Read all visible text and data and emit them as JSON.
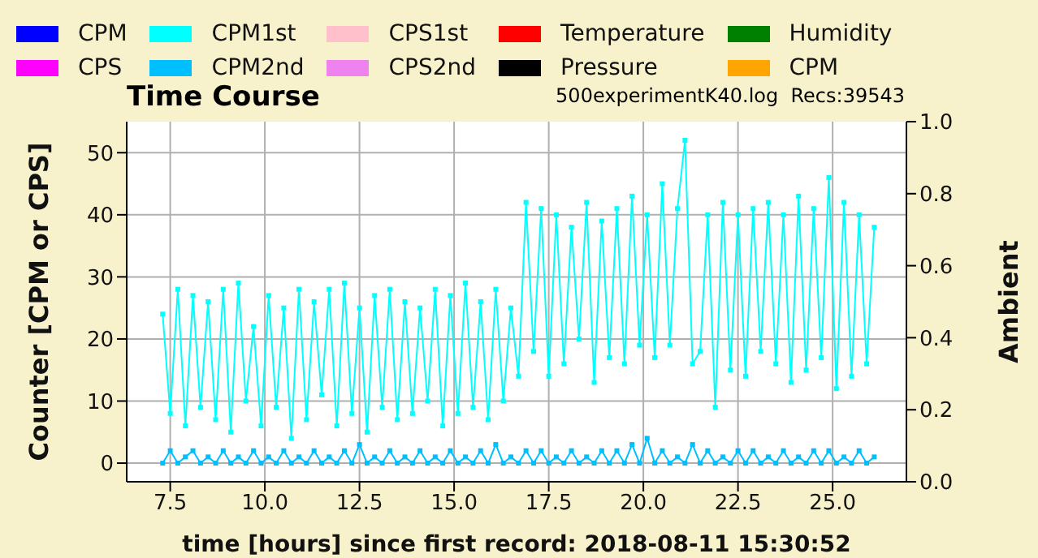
{
  "chart_data": {
    "type": "line",
    "title": "Time Course",
    "subtitle": "500experimentK40.log  Recs:39543",
    "xlabel": "time [hours] since first record: 2018-08-11 15:30:52",
    "ylabel": "Counter   [CPM or CPS]",
    "y2label": "Ambient",
    "x": [
      7.3,
      7.5,
      7.7,
      7.9,
      8.1,
      8.3,
      8.5,
      8.7,
      8.9,
      9.1,
      9.3,
      9.5,
      9.7,
      9.9,
      10.1,
      10.3,
      10.5,
      10.7,
      10.9,
      11.1,
      11.3,
      11.5,
      11.7,
      11.9,
      12.1,
      12.3,
      12.5,
      12.7,
      12.9,
      13.1,
      13.3,
      13.5,
      13.7,
      13.9,
      14.1,
      14.3,
      14.5,
      14.7,
      14.9,
      15.1,
      15.3,
      15.5,
      15.7,
      15.9,
      16.1,
      16.3,
      16.5,
      16.7,
      16.9,
      17.1,
      17.3,
      17.5,
      17.7,
      17.9,
      18.1,
      18.3,
      18.5,
      18.7,
      18.9,
      19.1,
      19.3,
      19.5,
      19.7,
      19.9,
      20.1,
      20.3,
      20.5,
      20.7,
      20.9,
      21.1,
      21.3,
      21.5,
      21.7,
      21.9,
      22.1,
      22.3,
      22.5,
      22.7,
      22.9,
      23.1,
      23.3,
      23.5,
      23.7,
      23.9,
      24.1,
      24.3,
      24.5,
      24.7,
      24.9,
      25.1,
      25.3,
      25.5,
      25.7,
      25.9,
      26.1
    ],
    "series": [
      {
        "name": "CPM",
        "color": "#0000ff",
        "values": [
          null,
          null,
          null,
          null,
          null,
          null,
          null,
          null,
          null,
          null,
          null,
          null,
          null,
          null,
          null,
          null,
          null,
          null,
          null,
          null,
          null,
          null,
          null,
          null,
          null,
          null,
          null,
          null,
          null,
          null,
          null,
          null,
          null,
          null,
          null,
          null,
          null,
          null,
          null,
          null,
          null,
          null,
          null,
          null,
          null,
          null,
          null,
          null,
          null,
          null,
          null,
          null,
          null,
          null,
          null,
          null,
          null,
          null,
          null,
          null,
          null,
          null,
          null,
          null,
          null,
          null,
          null,
          null,
          null,
          null,
          null,
          null,
          null,
          null,
          null,
          null,
          null,
          null,
          null,
          null,
          null,
          null,
          null,
          null,
          null,
          null,
          null,
          null,
          null,
          null,
          null,
          null,
          null,
          null,
          null
        ]
      },
      {
        "name": "CPS",
        "color": "#ff00ff",
        "values": [
          null,
          null,
          null,
          null,
          null,
          null,
          null,
          null,
          null,
          null,
          null,
          null,
          null,
          null,
          null,
          null,
          null,
          null,
          null,
          null,
          null,
          null,
          null,
          null,
          null,
          null,
          null,
          null,
          null,
          null,
          null,
          null,
          null,
          null,
          null,
          null,
          null,
          null,
          null,
          null,
          null,
          null,
          null,
          null,
          null,
          null,
          null,
          null,
          null,
          null,
          null,
          null,
          null,
          null,
          null,
          null,
          null,
          null,
          null,
          null,
          null,
          null,
          null,
          null,
          null,
          null,
          null,
          null,
          null,
          null,
          null,
          null,
          null,
          null,
          null,
          null,
          null,
          null,
          null,
          null,
          null,
          null,
          null,
          null,
          null,
          null,
          null,
          null,
          null,
          null,
          null,
          null,
          null,
          null,
          null
        ]
      },
      {
        "name": "CPM1st",
        "color": "#00ffff",
        "values": [
          24,
          8,
          28,
          6,
          27,
          9,
          26,
          7,
          28,
          5,
          29,
          10,
          22,
          6,
          27,
          9,
          25,
          4,
          28,
          7,
          26,
          11,
          28,
          6,
          29,
          8,
          25,
          5,
          27,
          9,
          28,
          7,
          26,
          8,
          25,
          10,
          28,
          6,
          27,
          8,
          29,
          9,
          26,
          7,
          28,
          10,
          25,
          14,
          42,
          18,
          41,
          14,
          40,
          16,
          38,
          20,
          42,
          13,
          39,
          17,
          41,
          16,
          43,
          19,
          40,
          17,
          45,
          19,
          41,
          52,
          16,
          18,
          40,
          9,
          42,
          15,
          40,
          14,
          41,
          18,
          42,
          16,
          40,
          13,
          43,
          15,
          41,
          17,
          46,
          12,
          42,
          14,
          40,
          16,
          38
        ]
      },
      {
        "name": "CPM2nd",
        "color": "#00bfff",
        "values": [
          0,
          2,
          0,
          1,
          2,
          0,
          1,
          0,
          2,
          0,
          1,
          0,
          2,
          0,
          1,
          0,
          2,
          0,
          1,
          0,
          2,
          0,
          1,
          0,
          2,
          0,
          3,
          0,
          1,
          0,
          2,
          0,
          1,
          0,
          2,
          0,
          1,
          0,
          2,
          0,
          1,
          0,
          2,
          0,
          3,
          0,
          1,
          0,
          2,
          0,
          2,
          0,
          1,
          0,
          2,
          0,
          1,
          0,
          2,
          0,
          2,
          0,
          3,
          0,
          4,
          0,
          2,
          0,
          1,
          0,
          3,
          0,
          2,
          0,
          1,
          0,
          2,
          0,
          2,
          0,
          1,
          0,
          2,
          0,
          1,
          0,
          2,
          0,
          2,
          0,
          1,
          0,
          2,
          0,
          1
        ]
      },
      {
        "name": "CPS1st",
        "color": "#ffc0cb",
        "values": [
          null,
          null,
          null,
          null,
          null,
          null,
          null,
          null,
          null,
          null,
          null,
          null,
          null,
          null,
          null,
          null,
          null,
          null,
          null,
          null,
          null,
          null,
          null,
          null,
          null,
          null,
          null,
          null,
          null,
          null,
          null,
          null,
          null,
          null,
          null,
          null,
          null,
          null,
          null,
          null,
          null,
          null,
          null,
          null,
          null,
          null,
          null,
          null,
          null,
          null,
          null,
          null,
          null,
          null,
          null,
          null,
          null,
          null,
          null,
          null,
          null,
          null,
          null,
          null,
          null,
          null,
          null,
          null,
          null,
          null,
          null,
          null,
          null,
          null,
          null,
          null,
          null,
          null,
          null,
          null,
          null,
          null,
          null,
          null,
          null,
          null,
          null,
          null,
          null,
          null,
          null,
          null,
          null,
          null,
          null
        ]
      },
      {
        "name": "CPS2nd",
        "color": "#ee82ee",
        "values": [
          null,
          null,
          null,
          null,
          null,
          null,
          null,
          null,
          null,
          null,
          null,
          null,
          null,
          null,
          null,
          null,
          null,
          null,
          null,
          null,
          null,
          null,
          null,
          null,
          null,
          null,
          null,
          null,
          null,
          null,
          null,
          null,
          null,
          null,
          null,
          null,
          null,
          null,
          null,
          null,
          null,
          null,
          null,
          null,
          null,
          null,
          null,
          null,
          null,
          null,
          null,
          null,
          null,
          null,
          null,
          null,
          null,
          null,
          null,
          null,
          null,
          null,
          null,
          null,
          null,
          null,
          null,
          null,
          null,
          null,
          null,
          null,
          null,
          null,
          null,
          null,
          null,
          null,
          null,
          null,
          null,
          null,
          null,
          null,
          null,
          null,
          null,
          null,
          null,
          null,
          null,
          null,
          null,
          null,
          null
        ]
      },
      {
        "name": "Temperature",
        "color": "#ff0000",
        "values": [
          null,
          null,
          null,
          null,
          null,
          null,
          null,
          null,
          null,
          null,
          null,
          null,
          null,
          null,
          null,
          null,
          null,
          null,
          null,
          null,
          null,
          null,
          null,
          null,
          null,
          null,
          null,
          null,
          null,
          null,
          null,
          null,
          null,
          null,
          null,
          null,
          null,
          null,
          null,
          null,
          null,
          null,
          null,
          null,
          null,
          null,
          null,
          null,
          null,
          null,
          null,
          null,
          null,
          null,
          null,
          null,
          null,
          null,
          null,
          null,
          null,
          null,
          null,
          null,
          null,
          null,
          null,
          null,
          null,
          null,
          null,
          null,
          null,
          null,
          null,
          null,
          null,
          null,
          null,
          null,
          null,
          null,
          null,
          null,
          null,
          null,
          null,
          null,
          null,
          null,
          null,
          null,
          null,
          null,
          null
        ]
      },
      {
        "name": "Pressure",
        "color": "#000000",
        "values": [
          null,
          null,
          null,
          null,
          null,
          null,
          null,
          null,
          null,
          null,
          null,
          null,
          null,
          null,
          null,
          null,
          null,
          null,
          null,
          null,
          null,
          null,
          null,
          null,
          null,
          null,
          null,
          null,
          null,
          null,
          null,
          null,
          null,
          null,
          null,
          null,
          null,
          null,
          null,
          null,
          null,
          null,
          null,
          null,
          null,
          null,
          null,
          null,
          null,
          null,
          null,
          null,
          null,
          null,
          null,
          null,
          null,
          null,
          null,
          null,
          null,
          null,
          null,
          null,
          null,
          null,
          null,
          null,
          null,
          null,
          null,
          null,
          null,
          null,
          null,
          null,
          null,
          null,
          null,
          null,
          null,
          null,
          null,
          null,
          null,
          null,
          null,
          null,
          null,
          null,
          null,
          null,
          null,
          null,
          null
        ]
      },
      {
        "name": "Humidity",
        "color": "#008000",
        "values": [
          null,
          null,
          null,
          null,
          null,
          null,
          null,
          null,
          null,
          null,
          null,
          null,
          null,
          null,
          null,
          null,
          null,
          null,
          null,
          null,
          null,
          null,
          null,
          null,
          null,
          null,
          null,
          null,
          null,
          null,
          null,
          null,
          null,
          null,
          null,
          null,
          null,
          null,
          null,
          null,
          null,
          null,
          null,
          null,
          null,
          null,
          null,
          null,
          null,
          null,
          null,
          null,
          null,
          null,
          null,
          null,
          null,
          null,
          null,
          null,
          null,
          null,
          null,
          null,
          null,
          null,
          null,
          null,
          null,
          null,
          null,
          null,
          null,
          null,
          null,
          null,
          null,
          null,
          null,
          null,
          null,
          null,
          null,
          null,
          null,
          null,
          null,
          null,
          null,
          null,
          null,
          null,
          null,
          null,
          null
        ]
      },
      {
        "name": "CPM",
        "color": "#ffa500",
        "values": [
          null,
          null,
          null,
          null,
          null,
          null,
          null,
          null,
          null,
          null,
          null,
          null,
          null,
          null,
          null,
          null,
          null,
          null,
          null,
          null,
          null,
          null,
          null,
          null,
          null,
          null,
          null,
          null,
          null,
          null,
          null,
          null,
          null,
          null,
          null,
          null,
          null,
          null,
          null,
          null,
          null,
          null,
          null,
          null,
          null,
          null,
          null,
          null,
          null,
          null,
          null,
          null,
          null,
          null,
          null,
          null,
          null,
          null,
          null,
          null,
          null,
          null,
          null,
          null,
          null,
          null,
          null,
          null,
          null,
          null,
          null,
          null,
          null,
          null,
          null,
          null,
          null,
          null,
          null,
          null,
          null,
          null,
          null,
          null,
          null,
          null,
          null,
          null,
          null,
          null,
          null,
          null,
          null,
          null,
          null
        ]
      }
    ],
    "xlim": [
      6.35,
      26.95
    ],
    "xticks": [
      {
        "value": 7.5,
        "label": "7.5"
      },
      {
        "value": 10,
        "label": "10.0"
      },
      {
        "value": 12.5,
        "label": "12.5"
      },
      {
        "value": 15,
        "label": "15.0"
      },
      {
        "value": 17.5,
        "label": "17.5"
      },
      {
        "value": 20,
        "label": "20.0"
      },
      {
        "value": 22.5,
        "label": "22.5"
      },
      {
        "value": 25,
        "label": "25.0"
      }
    ],
    "ylim": [
      -3,
      55
    ],
    "yticks": [
      0,
      10,
      20,
      30,
      40,
      50
    ],
    "y2lim": [
      0,
      1
    ],
    "y2ticks": [
      {
        "value": 0,
        "label": "0.0"
      },
      {
        "value": 0.2,
        "label": "0.2"
      },
      {
        "value": 0.4,
        "label": "0.4"
      },
      {
        "value": 0.6,
        "label": "0.6"
      },
      {
        "value": 0.8,
        "label": "0.8"
      },
      {
        "value": 1,
        "label": "1.0"
      }
    ],
    "grid": true,
    "legend": "top",
    "marker": "square",
    "line_style": "solid"
  }
}
